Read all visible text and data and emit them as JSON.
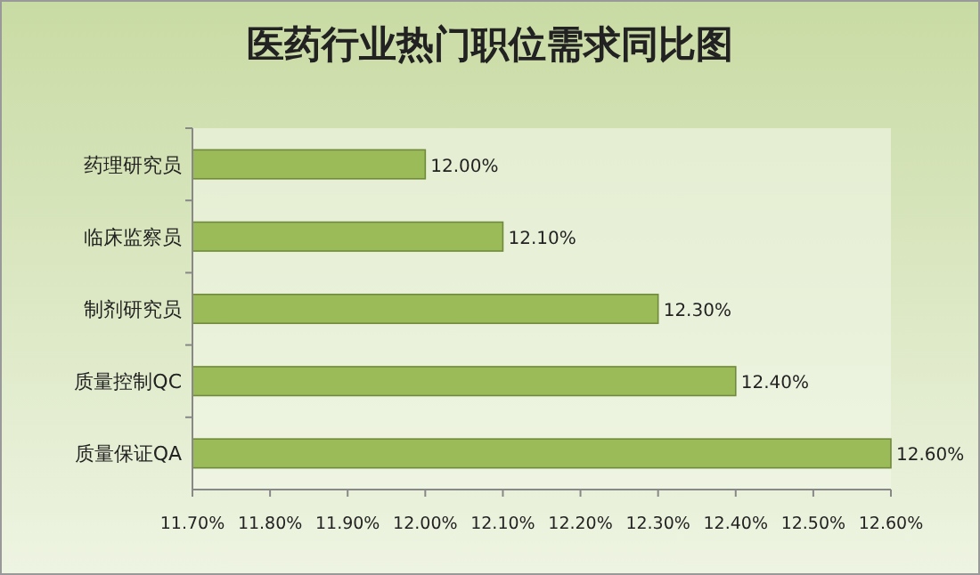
{
  "chart_data": {
    "type": "bar",
    "orientation": "horizontal",
    "title": "医药行业热门职位需求同比图",
    "categories": [
      "药理研究员",
      "临床监察员",
      "制剂研究员",
      "质量控制QC",
      "质量保证QA"
    ],
    "values": [
      12.0,
      12.1,
      12.3,
      12.4,
      12.6
    ],
    "value_labels": [
      "12.00%",
      "12.10%",
      "12.30%",
      "12.40%",
      "12.60%"
    ],
    "color": "#9bbb59",
    "xlim": [
      11.7,
      12.6
    ],
    "xticks": [
      {
        "value": 11.7,
        "label": "11.70%"
      },
      {
        "value": 11.8,
        "label": "11.80%"
      },
      {
        "value": 11.9,
        "label": "11.90%"
      },
      {
        "value": 12.0,
        "label": "12.00%"
      },
      {
        "value": 12.1,
        "label": "12.10%"
      },
      {
        "value": 12.2,
        "label": "12.20%"
      },
      {
        "value": 12.3,
        "label": "12.30%"
      },
      {
        "value": 12.4,
        "label": "12.40%"
      },
      {
        "value": 12.5,
        "label": "12.50%"
      },
      {
        "value": 12.6,
        "label": "12.60%"
      }
    ],
    "grid": false
  }
}
